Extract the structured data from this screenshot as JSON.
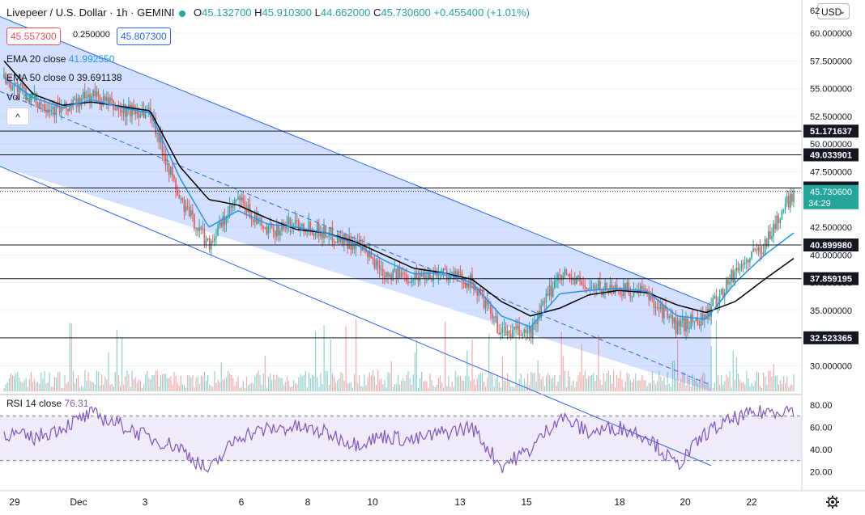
{
  "header": {
    "symbol": "Livepeer / U.S. Dollar · 1h · GEMINI",
    "o_label": "O",
    "o_value": "45.132700",
    "h_label": "H",
    "h_value": "45.910300",
    "l_label": "L",
    "l_value": "44.662000",
    "c_label": "C",
    "c_value": "45.730600",
    "change": "+0.455400 (+1.01%)",
    "sell_price": "45.557300",
    "spread": "0.250000",
    "buy_price": "45.807300",
    "currency": "USD",
    "axis_top_partial": "62"
  },
  "indicators": {
    "ema20_label": "EMA 20 close",
    "ema20_value": "41.992550",
    "ema50_label": "EMA 50 close 0",
    "ema50_value": "39.691138",
    "vol_label": "Vol",
    "vol_value": "495",
    "collapse_glyph": "^"
  },
  "rsi_panel": {
    "label": "RSI 14 close",
    "value": "76.31",
    "ticks": [
      80,
      60,
      40,
      20
    ],
    "tick_labels": [
      "80.00",
      "60.00",
      "40.00",
      "20.00"
    ],
    "band": [
      30,
      70
    ]
  },
  "chart_data": {
    "type": "line",
    "series_kind": "candlestick",
    "symbol": "LPT/USD",
    "interval": "1h",
    "exchange": "GEMINI",
    "ylim": [
      27.7,
      63.0
    ],
    "y_ticks": [
      30,
      32.5,
      35,
      37.5,
      40,
      42.5,
      45,
      47.5,
      50,
      52.5,
      55,
      57.5,
      60
    ],
    "y_tick_labels": [
      "30.000000",
      "32.500000",
      "35.000000",
      "37.500000",
      "40.000000",
      "42.500000",
      "45.000000",
      "47.500000",
      "50.000000",
      "52.500000",
      "55.000000",
      "57.500000",
      "60.000000"
    ],
    "x_tick_labels": [
      "29",
      "Dec",
      "3",
      "6",
      "8",
      "10",
      "13",
      "15",
      "18",
      "20",
      "22"
    ],
    "close_path": [
      {
        "t": "29",
        "v": 56.0
      },
      {
        "t": "30",
        "v": 54.0
      },
      {
        "t": "Dec 1",
        "v": 53.0
      },
      {
        "t": "Dec 2 early",
        "v": 54.5
      },
      {
        "t": "Dec 2 late",
        "v": 53.0
      },
      {
        "t": "Dec 3",
        "v": 53.0
      },
      {
        "t": "Dec 4 early",
        "v": 45.0
      },
      {
        "t": "Dec 4 low",
        "v": 41.0
      },
      {
        "t": "Dec 5",
        "v": 45.0
      },
      {
        "t": "Dec 6",
        "v": 42.0
      },
      {
        "t": "Dec 7",
        "v": 43.0
      },
      {
        "t": "Dec 8",
        "v": 42.0
      },
      {
        "t": "Dec 9",
        "v": 41.0
      },
      {
        "t": "Dec 10",
        "v": 38.5
      },
      {
        "t": "Dec 11",
        "v": 38.0
      },
      {
        "t": "Dec 12",
        "v": 38.5
      },
      {
        "t": "Dec 13",
        "v": 37.5
      },
      {
        "t": "Dec 14",
        "v": 33.0
      },
      {
        "t": "Dec 15",
        "v": 33.0
      },
      {
        "t": "Dec 16",
        "v": 38.5
      },
      {
        "t": "Dec 17",
        "v": 37.0
      },
      {
        "t": "Dec 18",
        "v": 37.0
      },
      {
        "t": "Dec 19",
        "v": 36.5
      },
      {
        "t": "Dec 20",
        "v": 33.5
      },
      {
        "t": "Dec 21",
        "v": 34.5
      },
      {
        "t": "Dec 22",
        "v": 38.5
      },
      {
        "t": "Dec 23",
        "v": 41.0
      },
      {
        "t": "last",
        "v": 45.73
      }
    ],
    "ema20_path": [
      56.0,
      54.2,
      53.3,
      54.0,
      53.3,
      52.8,
      47.0,
      42.5,
      44.0,
      42.8,
      42.5,
      42.0,
      41.0,
      39.5,
      38.3,
      38.4,
      37.5,
      34.5,
      33.5,
      36.5,
      36.8,
      37.0,
      36.7,
      34.5,
      34.2,
      37.5,
      40.0,
      41.99
    ],
    "ema50_path": [
      57.5,
      54.5,
      53.5,
      53.8,
      53.4,
      53.0,
      48.0,
      45.0,
      44.5,
      43.3,
      42.3,
      42.0,
      41.2,
      40.0,
      38.8,
      38.4,
      37.8,
      35.8,
      34.5,
      35.2,
      36.4,
      36.8,
      36.6,
      35.5,
      34.8,
      35.8,
      37.8,
      39.69
    ],
    "horizontal_levels": [
      {
        "value": 51.171637,
        "label": "51.171637"
      },
      {
        "value": 49.033901,
        "label": "49.033901"
      },
      {
        "value": 46.041071,
        "label": "46.041071"
      },
      {
        "value": 40.89998,
        "label": "40.899980"
      },
      {
        "value": 37.859195,
        "label": "37.859195"
      },
      {
        "value": 32.523365,
        "label": "32.523365"
      }
    ],
    "last_price": {
      "value": 45.7306,
      "label": "45.730600",
      "countdown": "34:29",
      "color": "#26a69a"
    },
    "channel_color": "#2962ff",
    "up_color": "#26a69a",
    "down_color": "#ef5350",
    "ema20_color": "#2196f3",
    "ema50_color": "#000000",
    "rsi_color": "#7e57c2",
    "rsi_path": [
      55,
      50,
      60,
      72,
      62,
      50,
      42,
      20,
      52,
      58,
      60,
      55,
      45,
      52,
      48,
      55,
      60,
      25,
      40,
      70,
      55,
      60,
      52,
      25,
      55,
      68,
      74,
      76.31
    ]
  }
}
